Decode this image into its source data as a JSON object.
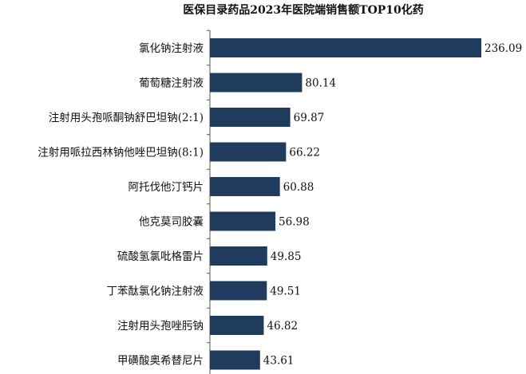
{
  "chart_data": {
    "type": "bar",
    "orientation": "horizontal",
    "title": "医保目录药品2023年医院端销售额TOP10化药",
    "categories": [
      "氯化钠注射液",
      "葡萄糖注射液",
      "注射用头孢哌酮钠舒巴坦钠(2:1)",
      "注射用哌拉西林钠他唑巴坦钠(8:1)",
      "阿托伐他汀钙片",
      "他克莫司胶囊",
      "硫酸氢氯吡格雷片",
      "丁苯酞氯化钠注射液",
      "注射用头孢唑肟钠",
      "甲磺酸奥希替尼片"
    ],
    "values": [
      236.09,
      80.14,
      69.87,
      66.22,
      60.88,
      56.98,
      49.85,
      49.51,
      46.82,
      43.61
    ],
    "value_labels": [
      "236.09",
      "80.14",
      "69.87",
      "66.22",
      "60.88",
      "56.98",
      "49.85",
      "49.51",
      "46.82",
      "43.61"
    ],
    "xlim": [
      0,
      236.09
    ],
    "grid": false,
    "legend": "none",
    "bar_color": "#1f3c5f"
  }
}
